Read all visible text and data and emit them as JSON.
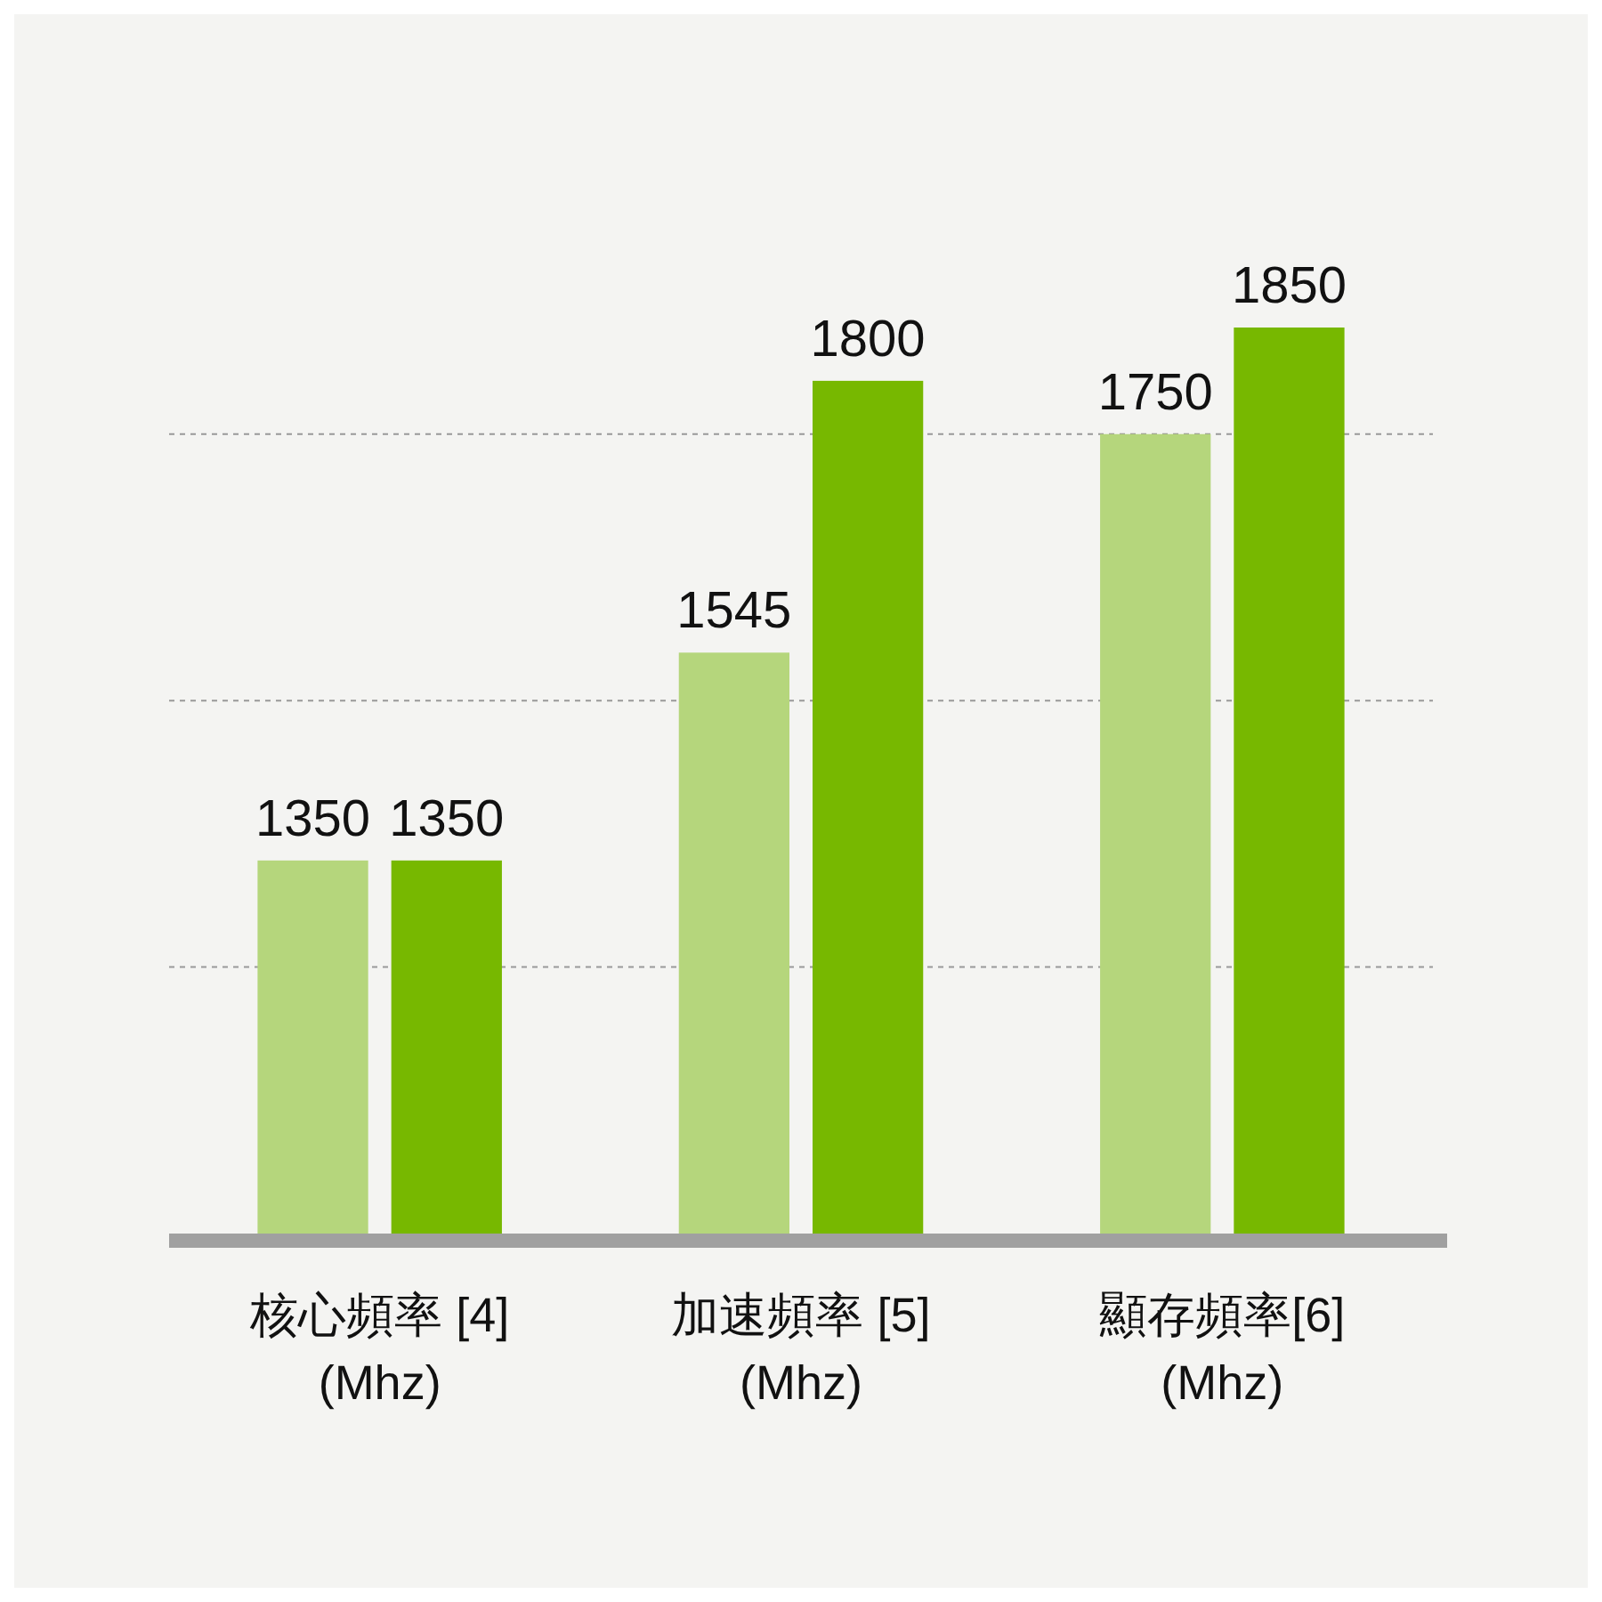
{
  "chart_data": {
    "type": "bar",
    "categories": [
      "核心頻率 [4]\n(Mhz)",
      "加速頻率 [5]\n(Mhz)",
      "顯存頻率[6]\n(Mhz)"
    ],
    "series": [
      {
        "color": "#b5d67c",
        "values": [
          1350,
          1545,
          1750
        ]
      },
      {
        "color": "#77b800",
        "values": [
          1350,
          1800,
          1850
        ]
      }
    ],
    "ylim": [
      1000,
      1850
    ],
    "yticks": [
      {
        "value": 1250,
        "label": null
      },
      {
        "value": 1500,
        "label": null
      },
      {
        "value": 1750,
        "label": null
      }
    ],
    "grid": "y",
    "data_labels": true
  }
}
